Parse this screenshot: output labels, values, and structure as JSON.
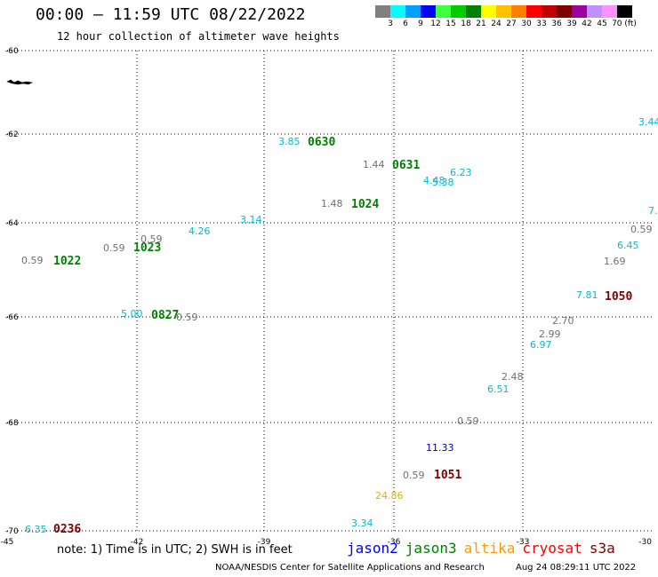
{
  "header": {
    "title": "00:00 — 11:59 UTC 08/22/2022",
    "subtitle": "12 hour collection of altimeter wave heights"
  },
  "legend": {
    "colors": [
      "#808080",
      "#00ffff",
      "#00a0ff",
      "#0000ff",
      "#40ff40",
      "#00cc00",
      "#008000",
      "#ffff00",
      "#ffc000",
      "#ff8000",
      "#ff0000",
      "#c00000",
      "#800000",
      "#a000a0",
      "#c090ff",
      "#ff90ff",
      "#000000"
    ],
    "labels": [
      "3",
      "6",
      "9",
      "12",
      "15",
      "18",
      "21",
      "24",
      "27",
      "30",
      "33",
      "36",
      "39",
      "42",
      "45",
      "70 (ft)"
    ]
  },
  "axes": {
    "lat_labels": [
      "-60",
      "-62",
      "-64",
      "-66",
      "-68",
      "-70"
    ],
    "lon_labels": [
      "-45",
      "-42",
      "-39",
      "-36",
      "-33",
      "-30"
    ]
  },
  "wave_labels": [
    {
      "text": "3.44",
      "color": "#00bcd4"
    },
    {
      "text": "3.85",
      "color": "#00bcd4"
    },
    {
      "text": "1.44",
      "color": "#707070"
    },
    {
      "text": "4.48",
      "color": "#00bcd4"
    },
    {
      "text": "6.23",
      "color": "#00bcd4"
    },
    {
      "text": "5.38",
      "color": "#00bcd4"
    },
    {
      "text": "1.48",
      "color": "#707070"
    },
    {
      "text": "3.14",
      "color": "#00bcd4"
    },
    {
      "text": "4.26",
      "color": "#00bcd4"
    },
    {
      "text": "0.59",
      "color": "#707070"
    },
    {
      "text": "0.59",
      "color": "#707070"
    },
    {
      "text": "0.59",
      "color": "#707070"
    },
    {
      "text": "7.",
      "color": "#00bcd4"
    },
    {
      "text": "0.59",
      "color": "#707070"
    },
    {
      "text": "6.45",
      "color": "#00bcd4"
    },
    {
      "text": "1.69",
      "color": "#707070"
    },
    {
      "text": "7.81",
      "color": "#00bcd4"
    },
    {
      "text": "5.00",
      "color": "#00bcd4"
    },
    {
      "text": "0.59",
      "color": "#707070"
    },
    {
      "text": "2.70",
      "color": "#707070"
    },
    {
      "text": "2.99",
      "color": "#707070"
    },
    {
      "text": "6.97",
      "color": "#00bcd4"
    },
    {
      "text": "2.48",
      "color": "#707070"
    },
    {
      "text": "6.51",
      "color": "#00bcd4"
    },
    {
      "text": "0.59",
      "color": "#707070"
    },
    {
      "text": "11.33",
      "color": "#0000c0"
    },
    {
      "text": "0.59",
      "color": "#707070"
    },
    {
      "text": "24.86",
      "color": "#e0b000"
    },
    {
      "text": "3.34",
      "color": "#00bcd4"
    },
    {
      "text": "6.35",
      "color": "#00bcd4"
    }
  ],
  "pass_times": [
    {
      "text": "0630",
      "color": "#008000"
    },
    {
      "text": "0631",
      "color": "#008000"
    },
    {
      "text": "1024",
      "color": "#008000"
    },
    {
      "text": "1023",
      "color": "#008000"
    },
    {
      "text": "1022",
      "color": "#008000"
    },
    {
      "text": "1050",
      "color": "#800000"
    },
    {
      "text": "0827",
      "color": "#008000"
    },
    {
      "text": "1051",
      "color": "#800000"
    },
    {
      "text": "0236",
      "color": "#800000"
    }
  ],
  "footer": {
    "note": "note: 1) Time is in UTC; 2) SWH is in feet",
    "satellites": [
      {
        "name": "jason2",
        "color": "#0000ff"
      },
      {
        "name": "jason3",
        "color": "#008000"
      },
      {
        "name": "altika",
        "color": "#ff9900"
      },
      {
        "name": "cryosat",
        "color": "#ff0000"
      },
      {
        "name": "s3a",
        "color": "#800000"
      }
    ],
    "credit": "NOAA/NESDIS Center for Satellite Applications and Research",
    "timestamp": "Aug 24 08:29:11 UTC 2022"
  }
}
